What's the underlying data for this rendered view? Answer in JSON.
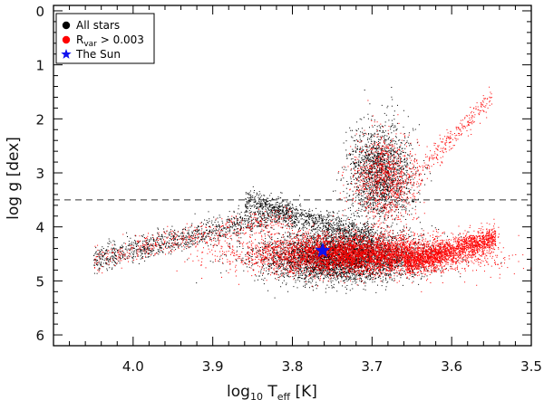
{
  "chart_data": {
    "type": "scatter",
    "title": "",
    "xlabel_main": "log",
    "xlabel_sub": "10",
    "xlabel_rest": " T",
    "xlabel_sub2": "eff",
    "xlabel_unit": " [K]",
    "ylabel": "log g [dex]",
    "xlim": [
      4.1,
      3.5
    ],
    "ylim": [
      6.2,
      -0.1
    ],
    "x_ticks": [
      4.0,
      3.9,
      3.8,
      3.7,
      3.6,
      3.5
    ],
    "x_tick_labels": [
      "4.0",
      "3.9",
      "3.8",
      "3.7",
      "3.6",
      "3.5"
    ],
    "y_ticks": [
      0,
      1,
      2,
      3,
      4,
      5,
      6
    ],
    "y_tick_labels": [
      "0",
      "1",
      "2",
      "3",
      "4",
      "5",
      "6"
    ],
    "reference_line": {
      "y": 3.5,
      "style": "dashed"
    },
    "grid": false,
    "legend_position": "top-left",
    "legend": [
      {
        "label": "All stars",
        "marker": "circle",
        "color": "#000000"
      },
      {
        "label_main": "R",
        "label_sub": "var",
        "label_rest": " > 0.003",
        "marker": "circle",
        "color": "#ff0000"
      },
      {
        "label": "The Sun",
        "marker": "star",
        "color": "#1010ee"
      }
    ],
    "series": [
      {
        "name": "All stars",
        "color": "#000000",
        "regions": [
          {
            "kind": "main_sequence",
            "center": [
              3.74,
              4.55
            ],
            "spread": [
              0.05,
              0.22
            ],
            "count": 4500
          },
          {
            "kind": "giant_branch",
            "center": [
              3.69,
              3.0
            ],
            "spread": [
              0.02,
              0.45
            ],
            "count": 1700
          },
          {
            "kind": "hot_branch",
            "x_range": [
              4.05,
              3.8
            ],
            "y_range": [
              4.6,
              3.7
            ],
            "count": 1100
          },
          {
            "kind": "turnoff_band",
            "x_range": [
              3.86,
              3.7
            ],
            "y_range": [
              3.5,
              4.2
            ],
            "count": 1000
          }
        ]
      },
      {
        "name": "Rvar > 0.003",
        "color": "#ff0000",
        "regions": [
          {
            "kind": "main_sequence",
            "center": [
              3.72,
              4.5
            ],
            "spread": [
              0.07,
              0.18
            ],
            "count": 5000
          },
          {
            "kind": "cool_dwarfs",
            "x_range": [
              3.66,
              3.545
            ],
            "y_range": [
              4.7,
              4.2
            ],
            "count": 1600
          },
          {
            "kind": "giant_branch",
            "center": [
              3.685,
              3.1
            ],
            "spread": [
              0.02,
              0.4
            ],
            "count": 900
          },
          {
            "kind": "hot_branch",
            "x_range": [
              4.05,
              3.8
            ],
            "y_range": [
              4.6,
              3.8
            ],
            "count": 500
          },
          {
            "kind": "upper_giants",
            "x_range": [
              3.67,
              3.55
            ],
            "y_range": [
              3.4,
              1.6
            ],
            "count": 300
          }
        ]
      }
    ],
    "highlight": {
      "name": "The Sun",
      "x": 3.762,
      "y": 4.44,
      "marker": "star",
      "color": "#1010ee"
    }
  }
}
